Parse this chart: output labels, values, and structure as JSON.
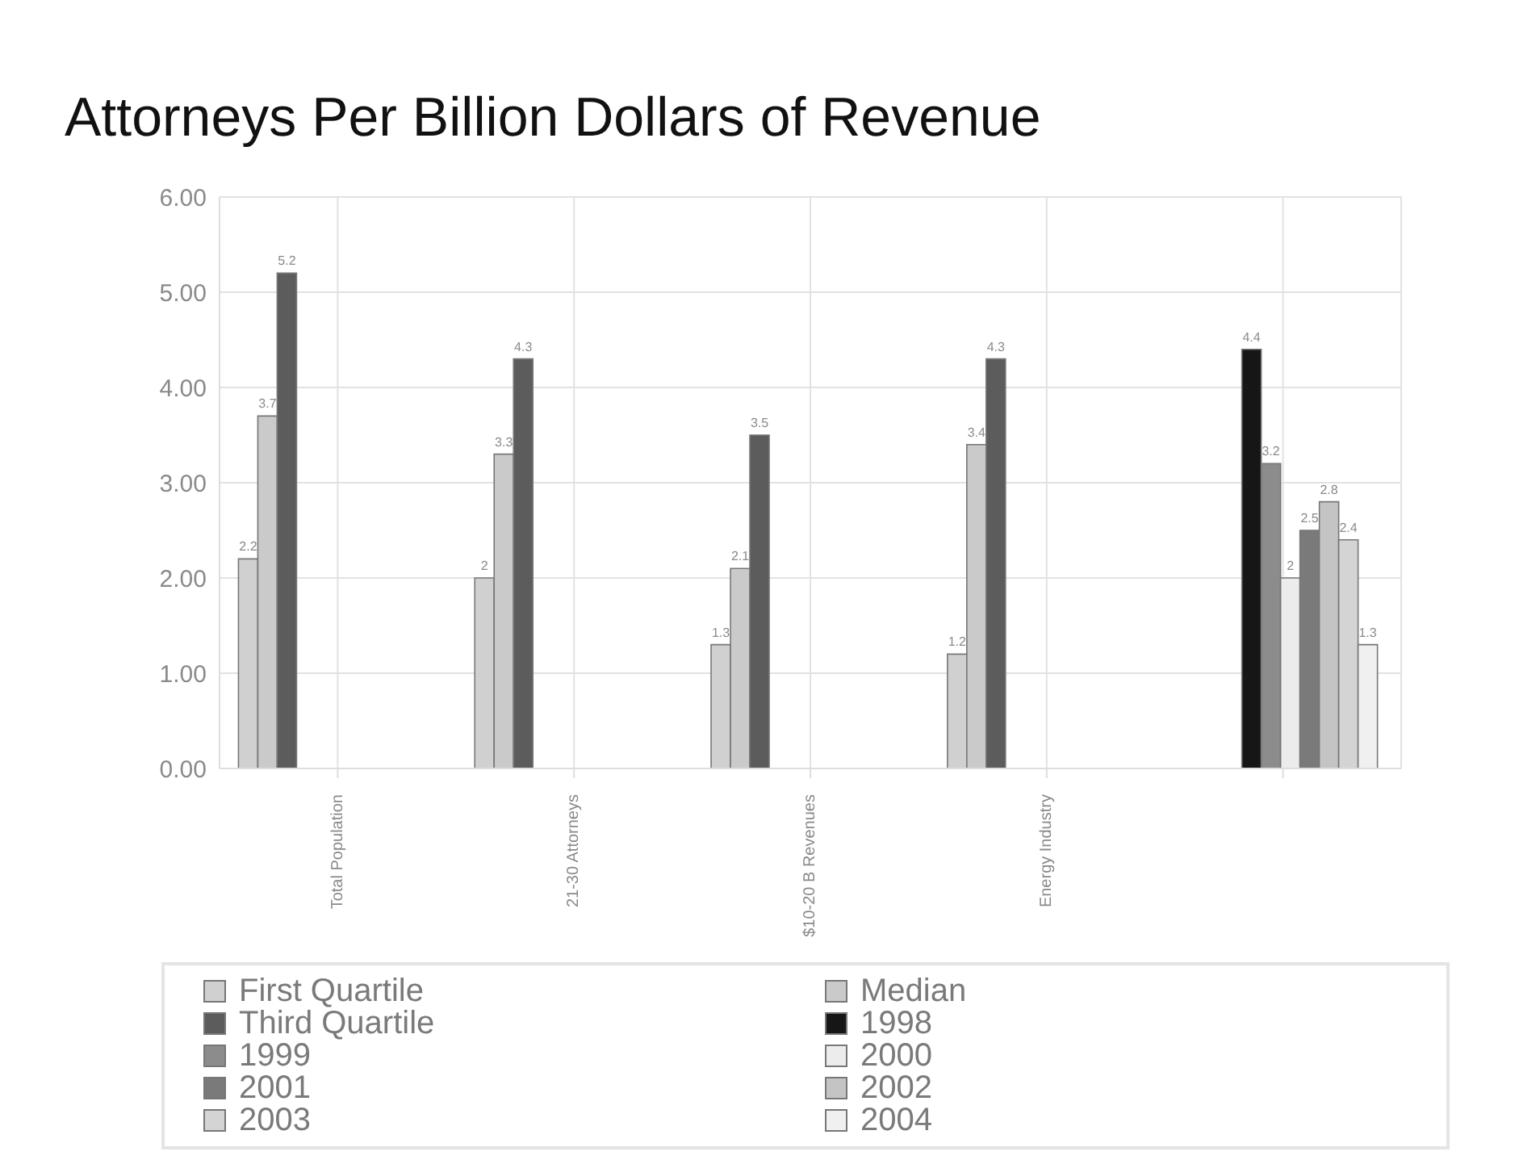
{
  "chart_data": {
    "type": "bar",
    "title": "Attorneys Per Billion Dollars of Revenue",
    "categories": [
      "Total Population",
      "21-30 Attorneys",
      "$10-20 B Revenues",
      "Energy Industry",
      null
    ],
    "series": [
      {
        "name": "First Quartile",
        "color": "#d0d0d0",
        "values": [
          2.2,
          2,
          1.3,
          1.2,
          null
        ]
      },
      {
        "name": "Median",
        "color": "#cacaca",
        "values": [
          3.7,
          3.3,
          2.1,
          3.4,
          null
        ]
      },
      {
        "name": "Third Quartile",
        "color": "#5c5c5c",
        "values": [
          5.2,
          4.3,
          3.5,
          4.3,
          null
        ]
      },
      {
        "name": "1998",
        "color": "#161616",
        "values": [
          null,
          null,
          null,
          null,
          4.4
        ]
      },
      {
        "name": "1999",
        "color": "#8c8c8c",
        "values": [
          null,
          null,
          null,
          null,
          3.2
        ]
      },
      {
        "name": "2000",
        "color": "#ececec",
        "values": [
          null,
          null,
          null,
          null,
          2
        ]
      },
      {
        "name": "2001",
        "color": "#7a7a7a",
        "values": [
          null,
          null,
          null,
          null,
          2.5
        ]
      },
      {
        "name": "2002",
        "color": "#c4c4c4",
        "values": [
          null,
          null,
          null,
          null,
          2.8
        ]
      },
      {
        "name": "2003",
        "color": "#d4d4d4",
        "values": [
          null,
          null,
          null,
          null,
          2.4
        ]
      },
      {
        "name": "2004",
        "color": "#f0f0f0",
        "values": [
          null,
          null,
          null,
          null,
          1.3
        ]
      }
    ],
    "ylim": [
      0,
      6
    ],
    "yticks": [
      {
        "value": 0,
        "label": "0.00"
      },
      {
        "value": 1,
        "label": "1.00"
      },
      {
        "value": 2,
        "label": "2.00"
      },
      {
        "value": 3,
        "label": "3.00"
      },
      {
        "value": 4,
        "label": "4.00"
      },
      {
        "value": 5,
        "label": "5.00"
      },
      {
        "value": 6,
        "label": "6.00"
      }
    ],
    "grid": true,
    "legend": "bottom",
    "data_labels": true
  }
}
